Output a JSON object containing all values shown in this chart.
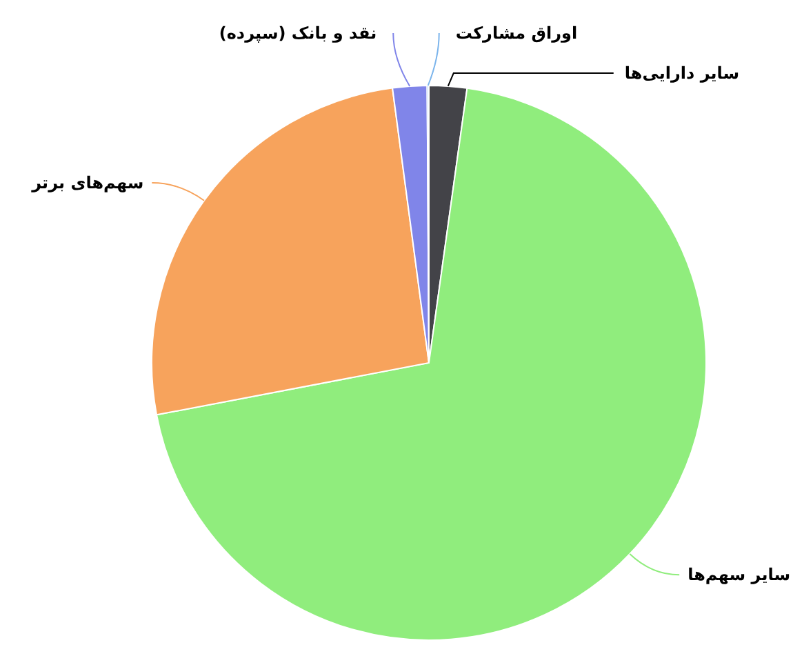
{
  "chart_data": {
    "type": "pie",
    "categories": [
      "سایر دارایی‌ها",
      "سایر سهم‌ها",
      "سهم‌های برتر",
      "نقد و بانک (سپرده)",
      "اوراق مشارکت"
    ],
    "values": [
      2.2,
      69.8,
      25.9,
      2.0,
      0.1
    ],
    "colors": [
      "#434348",
      "#90ed7d",
      "#f7a35c",
      "#8085e9",
      "#7cb5ec"
    ]
  }
}
